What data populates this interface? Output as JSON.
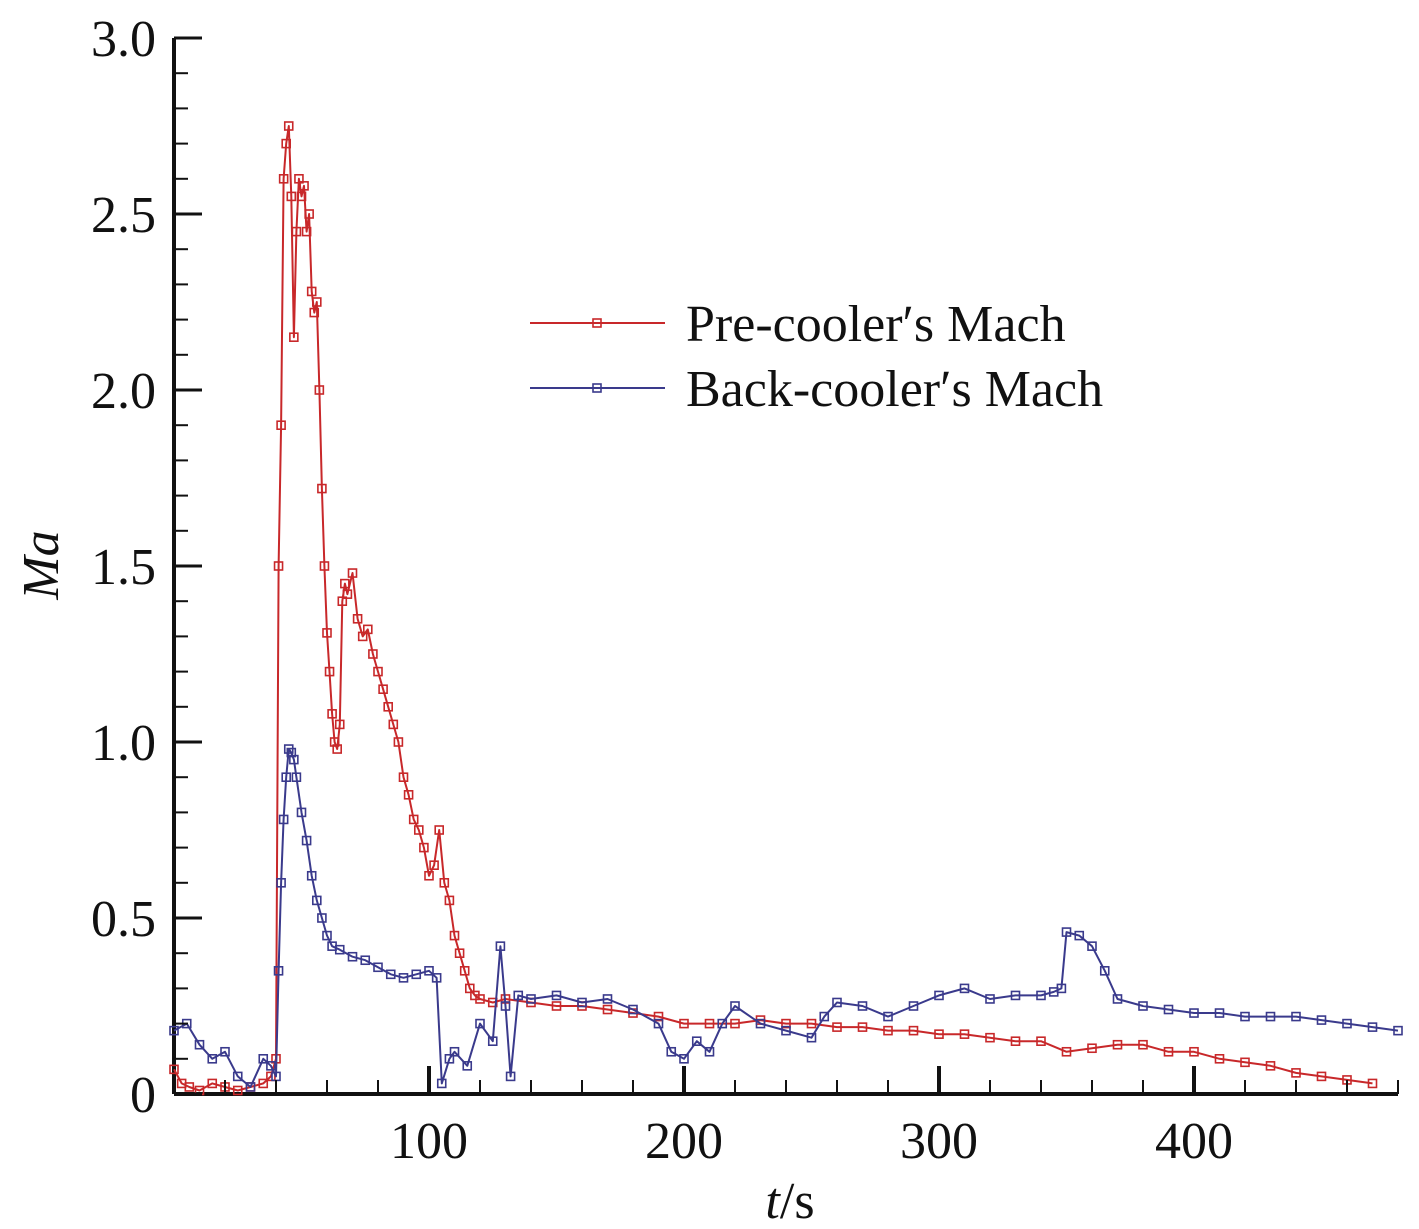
{
  "chart_data": {
    "type": "line",
    "xlabel_italic": "t",
    "xlabel_unit": "/s",
    "ylabel": "Ma",
    "xlim": [
      0,
      480
    ],
    "ylim": [
      0,
      3.0
    ],
    "xticks": [
      100,
      200,
      300,
      400
    ],
    "xtick_labels": [
      "100",
      "200",
      "300",
      "400"
    ],
    "yticks": [
      0,
      0.5,
      1.0,
      1.5,
      2.0,
      2.5,
      3.0
    ],
    "ytick_labels": [
      "0",
      "0.5",
      "1.0",
      "1.5",
      "2.0",
      "2.5",
      "3.0"
    ],
    "legend_position": "top-right",
    "series": [
      {
        "name": "Pre-cooler′s Mach",
        "color": "#c8282a",
        "x": [
          0,
          3,
          6,
          10,
          15,
          20,
          25,
          30,
          35,
          38,
          40,
          41,
          42,
          43,
          44,
          45,
          46,
          47,
          48,
          49,
          50,
          51,
          52,
          53,
          54,
          55,
          56,
          57,
          58,
          59,
          60,
          61,
          62,
          63,
          64,
          65,
          66,
          67,
          68,
          70,
          72,
          74,
          76,
          78,
          80,
          82,
          84,
          86,
          88,
          90,
          92,
          94,
          96,
          98,
          100,
          102,
          104,
          106,
          108,
          110,
          112,
          114,
          116,
          118,
          120,
          125,
          130,
          140,
          150,
          160,
          170,
          180,
          190,
          200,
          210,
          220,
          230,
          240,
          250,
          260,
          270,
          280,
          290,
          300,
          310,
          320,
          330,
          340,
          350,
          360,
          370,
          380,
          390,
          400,
          410,
          420,
          430,
          440,
          450,
          460,
          470
        ],
        "y": [
          0.07,
          0.03,
          0.02,
          0.01,
          0.03,
          0.02,
          0.01,
          0.02,
          0.03,
          0.05,
          0.1,
          1.5,
          1.9,
          2.6,
          2.7,
          2.75,
          2.55,
          2.15,
          2.45,
          2.6,
          2.55,
          2.58,
          2.45,
          2.5,
          2.28,
          2.22,
          2.25,
          2.0,
          1.72,
          1.5,
          1.31,
          1.2,
          1.08,
          1.0,
          0.98,
          1.05,
          1.4,
          1.45,
          1.42,
          1.48,
          1.35,
          1.3,
          1.32,
          1.25,
          1.2,
          1.15,
          1.1,
          1.05,
          1.0,
          0.9,
          0.85,
          0.78,
          0.75,
          0.7,
          0.62,
          0.65,
          0.75,
          0.6,
          0.55,
          0.45,
          0.4,
          0.35,
          0.3,
          0.28,
          0.27,
          0.26,
          0.27,
          0.26,
          0.25,
          0.25,
          0.24,
          0.23,
          0.22,
          0.2,
          0.2,
          0.2,
          0.21,
          0.2,
          0.2,
          0.19,
          0.19,
          0.18,
          0.18,
          0.17,
          0.17,
          0.16,
          0.15,
          0.15,
          0.12,
          0.13,
          0.14,
          0.14,
          0.12,
          0.12,
          0.1,
          0.09,
          0.08,
          0.06,
          0.05,
          0.04,
          0.03
        ]
      },
      {
        "name": "Back-cooler′s Mach",
        "color": "#3a3a8c",
        "x": [
          0,
          5,
          10,
          15,
          20,
          25,
          30,
          35,
          38,
          40,
          41,
          42,
          43,
          44,
          45,
          46,
          47,
          48,
          50,
          52,
          54,
          56,
          58,
          60,
          62,
          65,
          70,
          75,
          80,
          85,
          90,
          95,
          100,
          103,
          105,
          108,
          110,
          115,
          120,
          125,
          128,
          130,
          132,
          135,
          140,
          150,
          160,
          170,
          180,
          190,
          195,
          200,
          205,
          210,
          215,
          220,
          230,
          240,
          250,
          255,
          260,
          270,
          280,
          290,
          300,
          310,
          320,
          330,
          340,
          345,
          348,
          350,
          355,
          360,
          365,
          370,
          380,
          390,
          400,
          410,
          420,
          430,
          440,
          450,
          460,
          470,
          480
        ],
        "y": [
          0.18,
          0.2,
          0.14,
          0.1,
          0.12,
          0.05,
          0.02,
          0.1,
          0.08,
          0.05,
          0.35,
          0.6,
          0.78,
          0.9,
          0.98,
          0.97,
          0.95,
          0.9,
          0.8,
          0.72,
          0.62,
          0.55,
          0.5,
          0.45,
          0.42,
          0.41,
          0.39,
          0.38,
          0.36,
          0.34,
          0.33,
          0.34,
          0.35,
          0.33,
          0.03,
          0.1,
          0.12,
          0.08,
          0.2,
          0.15,
          0.42,
          0.25,
          0.05,
          0.28,
          0.27,
          0.28,
          0.26,
          0.27,
          0.24,
          0.2,
          0.12,
          0.1,
          0.15,
          0.12,
          0.2,
          0.25,
          0.2,
          0.18,
          0.16,
          0.22,
          0.26,
          0.25,
          0.22,
          0.25,
          0.28,
          0.3,
          0.27,
          0.28,
          0.28,
          0.29,
          0.3,
          0.46,
          0.45,
          0.42,
          0.35,
          0.27,
          0.25,
          0.24,
          0.23,
          0.23,
          0.22,
          0.22,
          0.22,
          0.21,
          0.2,
          0.19,
          0.18
        ]
      }
    ]
  }
}
